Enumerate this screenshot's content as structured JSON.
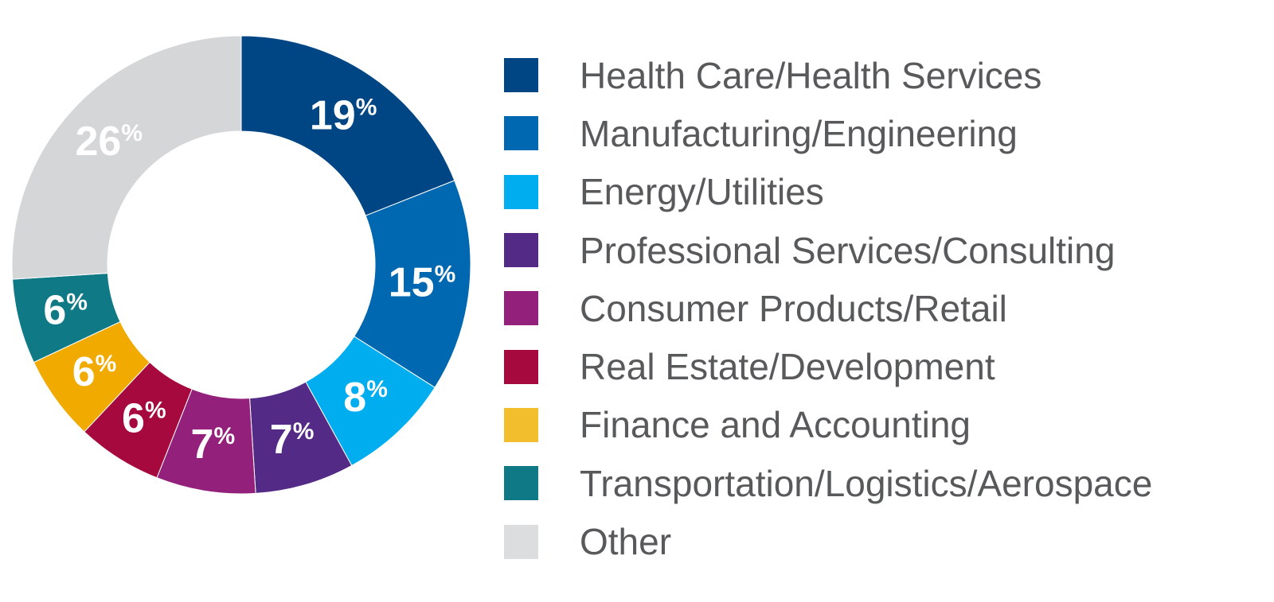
{
  "chart_data": {
    "type": "pie",
    "donut": true,
    "categories": [
      "Health Care/Health Services",
      "Manufacturing/Engineering",
      "Energy/Utilities",
      "Professional Services/Consulting",
      "Consumer Products/Retail",
      "Real Estate/Development",
      "Finance and Accounting",
      "Transportation/Logistics/Aerospace",
      "Other"
    ],
    "values": [
      19,
      15,
      8,
      7,
      7,
      6,
      6,
      6,
      26
    ],
    "data_labels": [
      "19",
      "15",
      "8",
      "7",
      "7",
      "6",
      "6",
      "6",
      "26"
    ],
    "unit_suffix": "%",
    "colors": [
      "#004685",
      "#0067b1",
      "#00aeef",
      "#532a85",
      "#93207a",
      "#a6093d",
      "#f0aa00",
      "#0f7a85",
      "#d5d6d8"
    ],
    "legend_swatch_colors": [
      "#004685",
      "#0067b1",
      "#00aeef",
      "#532a85",
      "#93207a",
      "#a6093d",
      "#f2be2e",
      "#0f7a85",
      "#dcdddf"
    ],
    "legend_position": "right",
    "start_angle_deg": 0,
    "direction": "clockwise",
    "title": ""
  }
}
